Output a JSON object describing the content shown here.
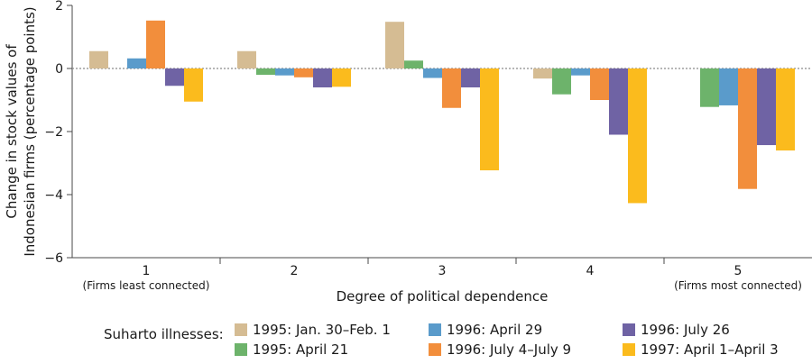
{
  "chart_data": {
    "type": "bar",
    "title": "",
    "xlabel": "Degree of political dependence",
    "ylabel_lines": [
      "Change in stock values of",
      "Indonesian firms (percentage points)"
    ],
    "categories": [
      "1",
      "2",
      "3",
      "4",
      "5"
    ],
    "category_sublabels": [
      "(Firms least connected)",
      "",
      "",
      "",
      "(Firms most connected)"
    ],
    "ylim": [
      -6,
      2
    ],
    "yticks": [
      2,
      0,
      -2,
      -4,
      -6
    ],
    "ytick_labels": [
      "2",
      "0",
      "−2",
      "−4",
      "−6"
    ],
    "zero_line": "dotted",
    "grid": false,
    "legend_title": "Suharto illnesses:",
    "legend_position": "bottom",
    "series": [
      {
        "name": "1995: Jan. 30–Feb. 1",
        "color": "#d5bc93",
        "values": [
          0.55,
          0.55,
          1.48,
          -0.32,
          null
        ]
      },
      {
        "name": "1995: April 21",
        "color": "#6db36b",
        "values": [
          null,
          -0.2,
          0.25,
          -0.82,
          -1.22
        ]
      },
      {
        "name": "1996: April 29",
        "color": "#5a9bcb",
        "values": [
          0.32,
          -0.22,
          -0.3,
          -0.22,
          -1.17
        ]
      },
      {
        "name": "1996: July 4–July 9",
        "color": "#f28e3c",
        "values": [
          1.52,
          -0.28,
          -1.25,
          -1.0,
          -3.82
        ]
      },
      {
        "name": "1996: July 26",
        "color": "#6f63a4",
        "values": [
          -0.55,
          -0.6,
          -0.6,
          -2.1,
          -2.43
        ]
      },
      {
        "name": "1997: April 1–April 3",
        "color": "#fbbb1d",
        "values": [
          -1.05,
          -0.58,
          -3.23,
          -4.27,
          -2.6
        ]
      }
    ]
  }
}
